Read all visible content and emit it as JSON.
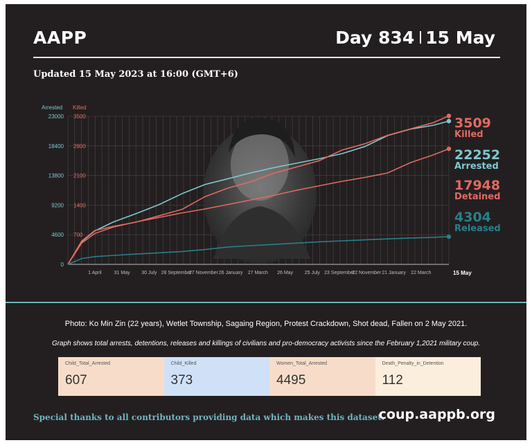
{
  "header": {
    "org": "AAPP",
    "day_label": "Day 834",
    "date_label": "15 May",
    "updated": "Updated 15 May 2023 at 16:00 (GMT+6)"
  },
  "colors": {
    "background": "#231f20",
    "arrested": "#7fc8d0",
    "killed": "#e06a63",
    "detained": "#e06a63",
    "released": "#2a7f8c",
    "accent": "#6fb5bf"
  },
  "chart_data": {
    "type": "line",
    "left_axis": {
      "label": "Arrested",
      "ticks": [
        0,
        4600,
        9200,
        13800,
        18400,
        23000
      ],
      "range": [
        0,
        23000
      ]
    },
    "right_axis": {
      "label": "Killed",
      "ticks": [
        0,
        700,
        1400,
        2100,
        2800,
        3500
      ],
      "range": [
        0,
        3500
      ]
    },
    "x_tick_labels": [
      "1 April",
      "31 May",
      "30 July",
      "28 September",
      "27 November",
      "26 January",
      "27 March",
      "26 May",
      "25 July",
      "23 September",
      "22 November",
      "21 January",
      "22 March"
    ],
    "x_end_label": "15 May",
    "x_range": [
      0,
      834
    ],
    "grid": true,
    "series": [
      {
        "name": "Arrested",
        "axis": "left",
        "color": "#7fc8d0",
        "x": [
          0,
          30,
          59,
          100,
          150,
          200,
          250,
          300,
          350,
          400,
          450,
          500,
          550,
          600,
          650,
          700,
          750,
          800,
          834
        ],
        "values": [
          0,
          3500,
          5200,
          6600,
          7900,
          9300,
          11000,
          12400,
          13300,
          14200,
          15000,
          15700,
          16400,
          17200,
          18300,
          20000,
          21000,
          21600,
          22252
        ]
      },
      {
        "name": "Killed",
        "axis": "right",
        "color": "#e06a63",
        "x": [
          0,
          30,
          59,
          100,
          150,
          200,
          250,
          300,
          350,
          400,
          450,
          500,
          550,
          600,
          650,
          700,
          750,
          800,
          834
        ],
        "values": [
          0,
          550,
          800,
          900,
          1000,
          1150,
          1300,
          1600,
          1800,
          1950,
          2150,
          2300,
          2450,
          2700,
          2850,
          3050,
          3200,
          3350,
          3509
        ]
      },
      {
        "name": "Detained",
        "axis": "left",
        "color": "#e06a63",
        "x": [
          0,
          30,
          59,
          100,
          150,
          200,
          250,
          300,
          350,
          400,
          450,
          500,
          550,
          600,
          650,
          700,
          750,
          800,
          834
        ],
        "values": [
          0,
          3300,
          4800,
          5800,
          6600,
          7300,
          8000,
          8600,
          9300,
          10000,
          10700,
          11500,
          12200,
          12900,
          13500,
          14200,
          15800,
          17000,
          17948
        ]
      },
      {
        "name": "Released",
        "axis": "left",
        "color": "#2a7f8c",
        "x": [
          0,
          30,
          59,
          100,
          150,
          200,
          250,
          300,
          350,
          400,
          450,
          500,
          550,
          600,
          650,
          700,
          750,
          800,
          834
        ],
        "values": [
          0,
          900,
          1200,
          1400,
          1600,
          1800,
          2000,
          2300,
          2700,
          2900,
          3100,
          3300,
          3500,
          3650,
          3800,
          3950,
          4100,
          4200,
          4304
        ]
      }
    ],
    "end_labels": [
      {
        "value": "3509",
        "label": "Killed",
        "color": "#e06a63"
      },
      {
        "value": "22252",
        "label": "Arrested",
        "color": "#7fc8d0"
      },
      {
        "value": "17948",
        "label": "Detained",
        "color": "#e06a63"
      },
      {
        "value": "4304",
        "label": "Released",
        "color": "#2a7f8c"
      }
    ]
  },
  "captions": {
    "photo": "Photo: Ko Min Zin (22 years), Wetlet Township, Sagaing Region, Protest Crackdown, Shot dead, Fallen on 2 May 2021.",
    "graph": "Graph shows total arrests, detentions, releases and killings of civilians and pro-democracy activists since the February 1,2021 military coup."
  },
  "stats": [
    {
      "label": "Child_Total_Arrested",
      "value": "607",
      "bg": "#f7ddc9"
    },
    {
      "label": "Child_Killed",
      "value": "373",
      "bg": "#cfe1f7"
    },
    {
      "label": "Women_Total_Arrested",
      "value": "4495",
      "bg": "#f7ddc9"
    },
    {
      "label": "Death_Penalty_in_Detention",
      "value": "112",
      "bg": "#fbeedd"
    }
  ],
  "footer": {
    "thanks": "Special thanks to all contributors providing data which makes this dataset.",
    "site": "coup.aappb.org"
  }
}
